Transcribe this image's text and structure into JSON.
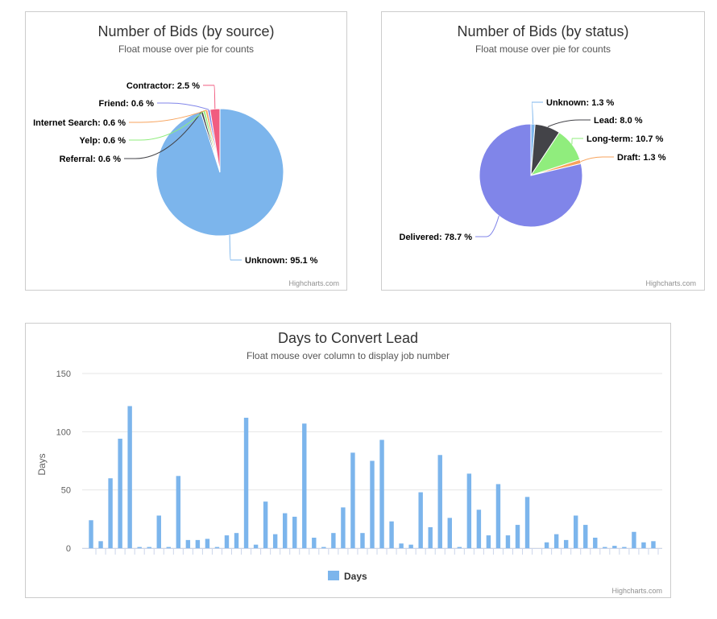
{
  "credits": "Highcharts.com",
  "chart_data": [
    {
      "type": "pie",
      "title": "Number of Bids (by source)",
      "subtitle": "Float mouse over pie for counts",
      "slices": [
        {
          "name": "Unknown",
          "value": 95.1,
          "label": "Unknown: 95.1 %",
          "color": "#7cb5ec"
        },
        {
          "name": "Referral",
          "value": 0.6,
          "label": "Referral: 0.6 %",
          "color": "#434348"
        },
        {
          "name": "Yelp",
          "value": 0.6,
          "label": "Yelp: 0.6 %",
          "color": "#90ed7d"
        },
        {
          "name": "Internet Search",
          "value": 0.6,
          "label": "Internet Search: 0.6 %",
          "color": "#f7a35c"
        },
        {
          "name": "Friend",
          "value": 0.6,
          "label": "Friend: 0.6 %",
          "color": "#8085e9"
        },
        {
          "name": "Contractor",
          "value": 2.5,
          "label": "Contractor: 2.5 %",
          "color": "#f15c80"
        }
      ]
    },
    {
      "type": "pie",
      "title": "Number of Bids (by status)",
      "subtitle": "Float mouse over pie for counts",
      "slices": [
        {
          "name": "Unknown",
          "value": 1.3,
          "label": "Unknown: 1.3 %",
          "color": "#7cb5ec"
        },
        {
          "name": "Lead",
          "value": 8.0,
          "label": "Lead: 8.0 %",
          "color": "#434348"
        },
        {
          "name": "Long-term",
          "value": 10.7,
          "label": "Long-term: 10.7 %",
          "color": "#90ed7d"
        },
        {
          "name": "Draft",
          "value": 1.3,
          "label": "Draft: 1.3 %",
          "color": "#f7a35c"
        },
        {
          "name": "Delivered",
          "value": 78.7,
          "label": "Delivered: 78.7 %",
          "color": "#8085e9"
        }
      ]
    },
    {
      "type": "bar",
      "title": "Days to Convert Lead",
      "subtitle": "Float mouse over column to display job number",
      "ylabel": "Days",
      "ylim": [
        0,
        150
      ],
      "yticks": [
        0,
        50,
        100,
        150
      ],
      "grid": true,
      "legend": "bottom-center",
      "series": [
        {
          "name": "Days",
          "color": "#7cb5ec",
          "values": [
            24,
            6,
            60,
            94,
            122,
            1,
            1,
            28,
            1,
            62,
            7,
            7,
            8,
            1,
            11,
            13,
            112,
            3,
            40,
            12,
            30,
            27,
            107,
            9,
            1,
            13,
            35,
            82,
            13,
            75,
            93,
            23,
            4,
            3,
            48,
            18,
            80,
            26,
            1,
            64,
            33,
            11,
            55,
            11,
            20,
            44,
            0,
            5,
            12,
            7,
            28,
            20,
            9,
            1,
            2,
            1,
            14,
            5,
            6
          ]
        }
      ]
    }
  ]
}
